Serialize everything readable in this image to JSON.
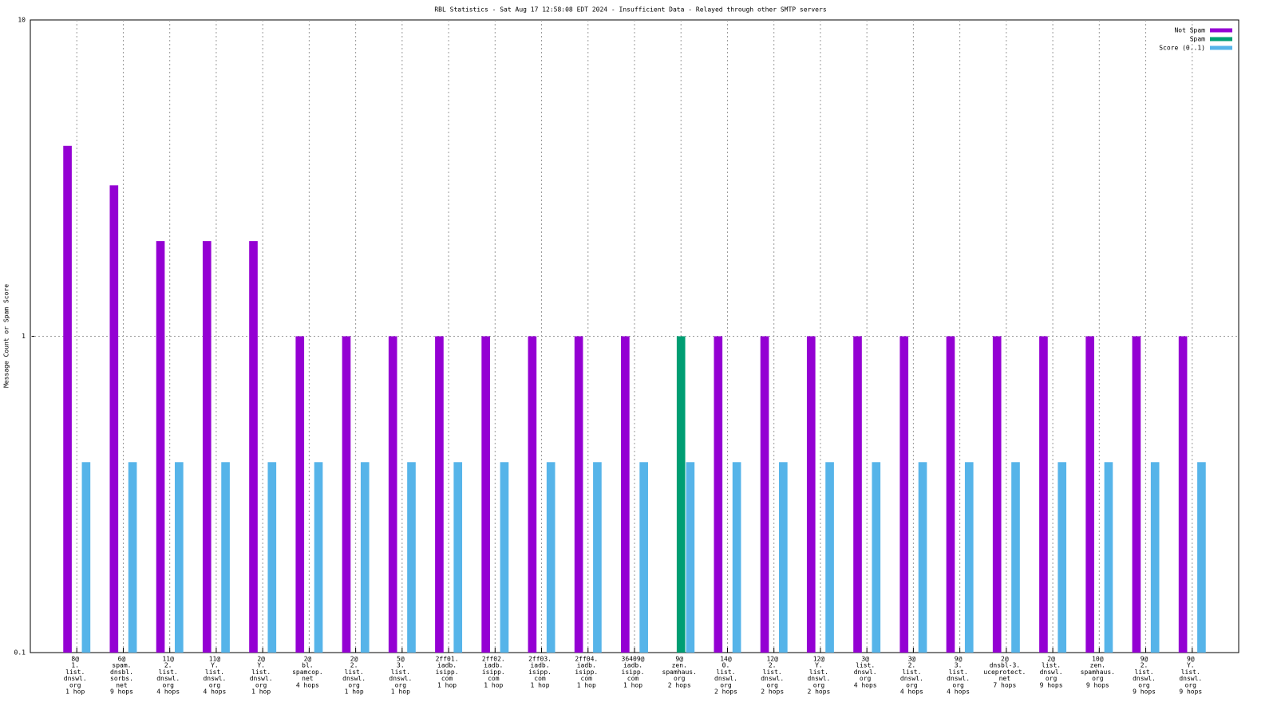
{
  "chart_data": {
    "type": "bar",
    "title": "RBL Statistics - Sat Aug 17 12:58:08 EDT 2024 - Insufficient Data - Relayed through other SMTP servers",
    "ylabel": "Message Count or Spam Score",
    "categories": [
      [
        "8@",
        "1.",
        "list.",
        "dnswl.",
        "org",
        "1 hop"
      ],
      [
        "6@",
        "spam.",
        "dnsbl.",
        "sorbs.",
        "net",
        "9 hops"
      ],
      [
        "11@",
        "2.",
        "list.",
        "dnswl.",
        "org",
        "4 hops"
      ],
      [
        "11@",
        "Y.",
        "list.",
        "dnswl.",
        "org",
        "4 hops"
      ],
      [
        "2@",
        "Y.",
        "list.",
        "dnswl.",
        "org",
        "1 hop"
      ],
      [
        "2@",
        "bl.",
        "spamcop.",
        "net",
        "4 hops"
      ],
      [
        "2@",
        "2.",
        "list.",
        "dnswl.",
        "org",
        "1 hop"
      ],
      [
        "5@",
        "3.",
        "list.",
        "dnswl.",
        "org",
        "1 hop"
      ],
      [
        "2ff01.",
        "iadb.",
        "isipp.",
        "com",
        "1 hop"
      ],
      [
        "2ff02.",
        "iadb.",
        "isipp.",
        "com",
        "1 hop"
      ],
      [
        "2ff03.",
        "iadb.",
        "isipp.",
        "com",
        "1 hop"
      ],
      [
        "2ff04.",
        "iadb.",
        "isipp.",
        "com",
        "1 hop"
      ],
      [
        "36409@",
        "iadb.",
        "isipp.",
        "com",
        "1 hop"
      ],
      [
        "9@",
        "zen.",
        "spamhaus.",
        "org",
        "2 hops"
      ],
      [
        "14@",
        "0.",
        "list.",
        "dnswl.",
        "org",
        "2 hops"
      ],
      [
        "12@",
        "2.",
        "list.",
        "dnswl.",
        "org",
        "2 hops"
      ],
      [
        "12@",
        "Y.",
        "list.",
        "dnswl.",
        "org",
        "2 hops"
      ],
      [
        "3@",
        "list.",
        "dnswl.",
        "org",
        "4 hops"
      ],
      [
        "3@",
        "2.",
        "list.",
        "dnswl.",
        "org",
        "4 hops"
      ],
      [
        "9@",
        "3.",
        "list.",
        "dnswl.",
        "org",
        "4 hops"
      ],
      [
        "2@",
        "dnsbl-3.",
        "uceprotect.",
        "net",
        "7 hops"
      ],
      [
        "2@",
        "list.",
        "dnswl.",
        "org",
        "9 hops"
      ],
      [
        "10@",
        "zen.",
        "spamhaus.",
        "org",
        "9 hops"
      ],
      [
        "9@",
        "2.",
        "list.",
        "dnswl.",
        "org",
        "9 hops"
      ],
      [
        "9@",
        "Y.",
        "list.",
        "dnswl.",
        "org",
        "9 hops"
      ]
    ],
    "series": [
      {
        "name": "Not Spam",
        "color": "#9400d3",
        "values": [
          4,
          3,
          2,
          2,
          2,
          1,
          1,
          1,
          1,
          1,
          1,
          1,
          1,
          null,
          1,
          1,
          1,
          1,
          1,
          1,
          1,
          1,
          1,
          1,
          1
        ]
      },
      {
        "name": "Spam",
        "color": "#009e73",
        "values": [
          null,
          null,
          null,
          null,
          null,
          null,
          null,
          null,
          null,
          null,
          null,
          null,
          null,
          1,
          null,
          null,
          null,
          null,
          null,
          null,
          null,
          null,
          null,
          null,
          null
        ]
      },
      {
        "name": "Score (0..1)",
        "color": "#56b4e9",
        "values": [
          0.4,
          0.4,
          0.4,
          0.4,
          0.4,
          0.4,
          0.4,
          0.4,
          0.4,
          0.4,
          0.4,
          0.4,
          0.4,
          0.4,
          0.4,
          0.4,
          0.4,
          0.4,
          0.4,
          0.4,
          0.4,
          0.4,
          0.4,
          0.4,
          0.4
        ]
      }
    ],
    "ylim": [
      0.1,
      10
    ],
    "yticks": [
      0.1,
      1,
      10
    ],
    "log_y": true,
    "grid": true,
    "legend": "top-right"
  }
}
